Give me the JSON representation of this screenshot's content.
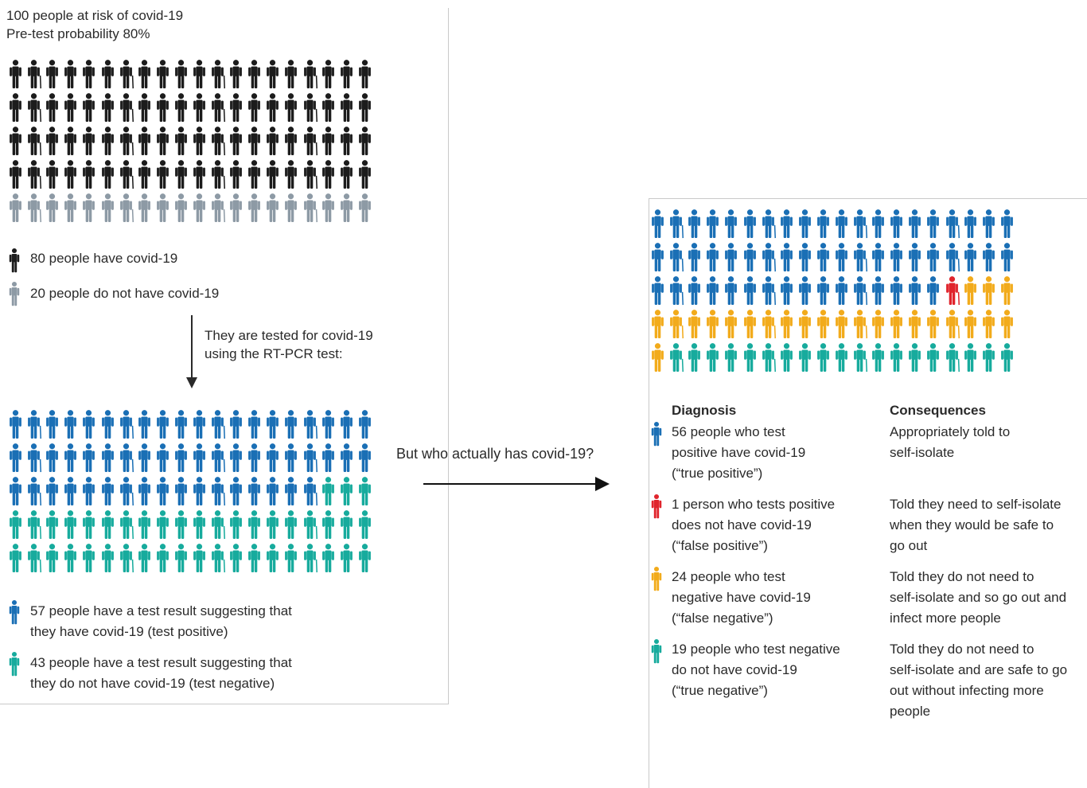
{
  "colors": {
    "has_covid": "#1c1c1c",
    "no_covid": "#8d9aa5",
    "test_positive": "#1a6fb5",
    "test_negative": "#17ab9d",
    "true_positive": "#1a6fb5",
    "false_positive": "#e0242c",
    "false_negative": "#f2ab1b",
    "true_negative": "#17ab9d"
  },
  "header": {
    "line1": "100 people at risk of covid-19",
    "line2": "Pre-test probability 80%"
  },
  "pretest_grid": {
    "counts": {
      "has_covid": 80,
      "no_covid": 20
    }
  },
  "pretest_legend": {
    "has_covid": {
      "icon": "person-icon",
      "label": "80 people have covid-19"
    },
    "no_covid": {
      "icon": "person-icon",
      "label": "20 people do not have covid-19"
    }
  },
  "test_step": {
    "line1": "They are  tested for covid-19",
    "line2": "using the RT-PCR test:"
  },
  "result_grid": {
    "counts": {
      "test_positive": 57,
      "test_negative": 43
    }
  },
  "result_legend": {
    "positive": {
      "line1": "57 people have a test result suggesting that",
      "line2": "they have covid-19 (test positive)"
    },
    "negative": {
      "line1": "43 people have a test result suggesting that",
      "line2": "they do not have covid-19 (test negative)"
    }
  },
  "question": "But who actually has covid-19?",
  "outcome_grid": {
    "counts": {
      "true_positive": 56,
      "false_positive": 1,
      "false_negative": 24,
      "true_negative": 19
    }
  },
  "table": {
    "diagnosis_header": "Diagnosis",
    "consequences_header": "Consequences",
    "rows": [
      {
        "key": "true_positive",
        "diagnosis": [
          "56 people who test",
          "positive have covid-19",
          "(“true positive”)"
        ],
        "consequence": [
          "Appropriately told to",
          "self-isolate"
        ]
      },
      {
        "key": "false_positive",
        "diagnosis": [
          "1 person who tests positive",
          "does not have covid-19",
          "(“false positive”)"
        ],
        "consequence": [
          "Told they need to self-isolate",
          "when they would be safe to",
          "go out"
        ]
      },
      {
        "key": "false_negative",
        "diagnosis": [
          "24 people who test",
          "negative have covid-19",
          "(“false negative”)"
        ],
        "consequence": [
          "Told they do not need to",
          "self-isolate and so go out and",
          "infect more people"
        ]
      },
      {
        "key": "true_negative",
        "diagnosis": [
          "19 people who test negative",
          "do not have covid-19",
          "(“true negative”)"
        ],
        "consequence": [
          "Told they do not need to",
          "self-isolate and are safe to go",
          "out without infecting more",
          "people"
        ]
      }
    ]
  }
}
